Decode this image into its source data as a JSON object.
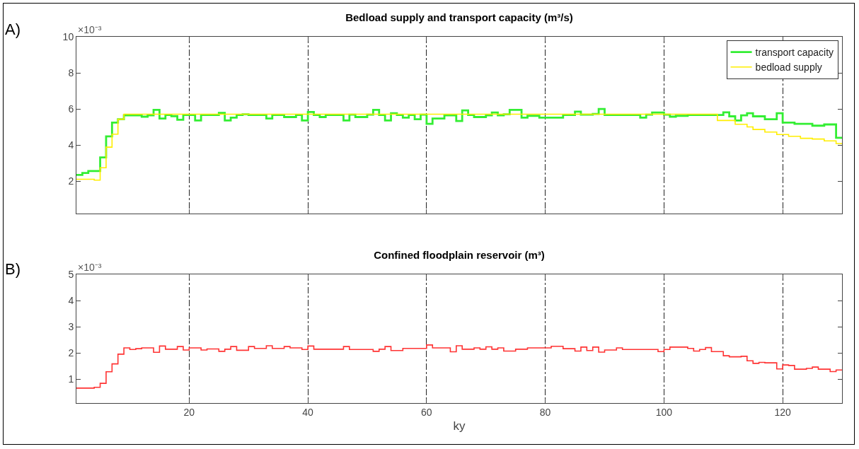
{
  "chart_data": [
    {
      "type": "step",
      "title": "Bedload supply and transport capacity (m³/s)",
      "annotations": [
        "A)",
        "×10⁻³"
      ],
      "xlim": [
        1,
        130
      ],
      "xticks": [
        20,
        40,
        60,
        80,
        100,
        120
      ],
      "ylim": [
        0.2,
        10
      ],
      "yticks": [
        2,
        4,
        6,
        8,
        10
      ],
      "tick_labels": "y",
      "grid": "x",
      "legend": "top right",
      "line_style": "solid",
      "marker": "none",
      "series": [
        {
          "name": "transport capacity",
          "color": "#33ee33",
          "x": [
            1,
            2,
            3,
            5,
            6,
            7,
            8,
            9,
            12,
            13,
            14,
            15,
            16,
            17,
            18,
            19,
            21,
            22,
            25,
            26,
            27,
            28,
            29,
            30,
            33,
            34,
            36,
            38,
            39,
            40,
            41,
            42,
            43,
            46,
            47,
            48,
            50,
            51,
            52,
            53,
            54,
            55,
            56,
            57,
            58,
            59,
            60,
            61,
            63,
            64,
            65,
            66,
            67,
            68,
            70,
            71,
            72,
            73,
            74,
            76,
            77,
            79,
            81,
            83,
            85,
            86,
            88,
            89,
            90,
            96,
            97,
            98,
            100,
            101,
            102,
            104,
            110,
            111,
            112,
            113,
            114,
            115,
            117,
            119,
            120,
            122,
            125,
            127,
            129,
            130
          ],
          "values": [
            2.34,
            2.45,
            2.56,
            3.31,
            4.48,
            5.24,
            5.43,
            5.64,
            5.57,
            5.64,
            5.95,
            5.47,
            5.66,
            5.6,
            5.4,
            5.66,
            5.36,
            5.66,
            5.78,
            5.36,
            5.52,
            5.66,
            5.7,
            5.66,
            5.47,
            5.66,
            5.55,
            5.66,
            5.36,
            5.83,
            5.66,
            5.55,
            5.66,
            5.36,
            5.68,
            5.55,
            5.68,
            5.95,
            5.66,
            5.36,
            5.76,
            5.66,
            5.52,
            5.66,
            5.43,
            5.68,
            5.17,
            5.47,
            5.64,
            5.64,
            5.33,
            5.92,
            5.66,
            5.55,
            5.64,
            5.8,
            5.64,
            5.7,
            5.95,
            5.52,
            5.62,
            5.52,
            5.52,
            5.66,
            5.85,
            5.68,
            5.72,
            6.0,
            5.66,
            5.52,
            5.68,
            5.8,
            5.68,
            5.57,
            5.62,
            5.66,
            5.81,
            5.59,
            5.36,
            5.64,
            5.76,
            5.59,
            5.43,
            5.76,
            5.24,
            5.17,
            5.07,
            5.14,
            4.4,
            4.4
          ]
        },
        {
          "name": "bedload supply",
          "color": "#ffee00",
          "x": [
            1,
            4,
            5,
            6,
            7,
            8,
            9,
            109,
            112,
            114,
            115,
            117,
            119,
            121,
            123,
            125,
            127,
            129,
            130
          ],
          "values": [
            2.1,
            2.05,
            2.74,
            3.88,
            4.6,
            5.43,
            5.71,
            5.36,
            5.15,
            5.0,
            4.86,
            4.72,
            4.58,
            4.48,
            4.37,
            4.33,
            4.23,
            4.08,
            4.08
          ]
        }
      ]
    },
    {
      "type": "step",
      "title": "Confined floodplain reservoir (m³)",
      "xlabel": "ky",
      "annotations": [
        "B)",
        "×10⁻³"
      ],
      "xlim": [
        1,
        130
      ],
      "xticks": [
        20,
        40,
        60,
        80,
        100,
        120
      ],
      "ylim": [
        0.1,
        5
      ],
      "yticks": [
        1,
        2,
        3,
        4,
        5
      ],
      "grid": "x",
      "line_style": "solid",
      "marker": "none",
      "series": [
        {
          "color": "#ff3333",
          "x": [
            1,
            4,
            5,
            6,
            7,
            8,
            9,
            10,
            11,
            12,
            14,
            15,
            16,
            18,
            19,
            20,
            22,
            23,
            25,
            26,
            27,
            28,
            30,
            31,
            33,
            34,
            36,
            37,
            39,
            40,
            41,
            46,
            47,
            51,
            52,
            53,
            54,
            56,
            60,
            61,
            64,
            65,
            66,
            68,
            69,
            70,
            71,
            72,
            73,
            75,
            77,
            81,
            83,
            85,
            86,
            87,
            88,
            89,
            90,
            92,
            93,
            99,
            100,
            101,
            104,
            105,
            106,
            107,
            108,
            110,
            111,
            113,
            114,
            115,
            116,
            117,
            119,
            120,
            121,
            122,
            124,
            125,
            126,
            128,
            129,
            130
          ],
          "values": [
            0.67,
            0.7,
            0.85,
            1.29,
            1.59,
            1.96,
            2.2,
            2.14,
            2.17,
            2.2,
            2.03,
            2.27,
            2.15,
            2.25,
            2.12,
            2.2,
            2.12,
            2.16,
            2.07,
            2.15,
            2.25,
            2.11,
            2.25,
            2.18,
            2.28,
            2.18,
            2.25,
            2.2,
            2.14,
            2.27,
            2.15,
            2.25,
            2.14,
            2.07,
            2.15,
            2.25,
            2.1,
            2.18,
            2.31,
            2.2,
            2.05,
            2.28,
            2.15,
            2.2,
            2.15,
            2.24,
            2.15,
            2.2,
            2.08,
            2.15,
            2.2,
            2.26,
            2.17,
            2.08,
            2.23,
            2.1,
            2.23,
            2.04,
            2.12,
            2.2,
            2.14,
            2.06,
            2.14,
            2.23,
            2.18,
            2.08,
            2.14,
            2.21,
            2.06,
            1.9,
            1.86,
            1.88,
            1.71,
            1.61,
            1.65,
            1.63,
            1.4,
            1.55,
            1.53,
            1.39,
            1.42,
            1.47,
            1.39,
            1.3,
            1.36,
            1.36
          ]
        }
      ]
    }
  ]
}
